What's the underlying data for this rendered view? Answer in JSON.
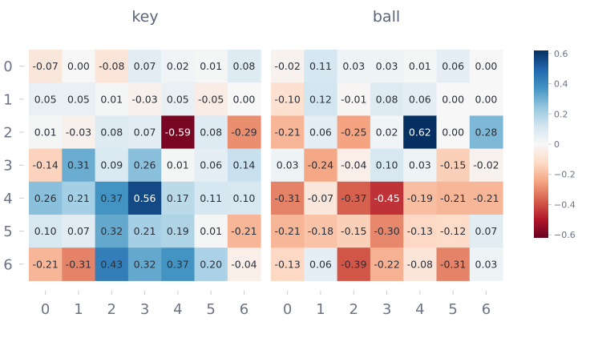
{
  "chart_data": [
    {
      "type": "heatmap",
      "title": "key",
      "x": [
        "0",
        "1",
        "2",
        "3",
        "4",
        "5",
        "6"
      ],
      "y": [
        "0",
        "1",
        "2",
        "3",
        "4",
        "5",
        "6"
      ],
      "values": [
        [
          -0.07,
          0.0,
          -0.08,
          0.07,
          0.02,
          0.01,
          0.08
        ],
        [
          0.05,
          0.05,
          0.01,
          -0.03,
          0.05,
          -0.05,
          0.0
        ],
        [
          0.01,
          -0.03,
          0.08,
          0.07,
          -0.59,
          0.08,
          -0.29
        ],
        [
          -0.14,
          0.31,
          0.09,
          0.26,
          0.01,
          0.06,
          0.14
        ],
        [
          0.26,
          0.21,
          0.37,
          0.56,
          0.17,
          0.11,
          0.1
        ],
        [
          0.1,
          0.07,
          0.32,
          0.21,
          0.19,
          0.01,
          -0.21
        ],
        [
          -0.21,
          -0.31,
          0.43,
          0.32,
          0.37,
          0.2,
          -0.04
        ]
      ]
    },
    {
      "type": "heatmap",
      "title": "ball",
      "x": [
        "0",
        "1",
        "2",
        "3",
        "4",
        "5",
        "6"
      ],
      "y": [
        "0",
        "1",
        "2",
        "3",
        "4",
        "5",
        "6"
      ],
      "values": [
        [
          -0.02,
          0.11,
          0.03,
          0.03,
          0.01,
          0.06,
          0.0
        ],
        [
          -0.1,
          0.12,
          -0.01,
          0.08,
          0.06,
          0.0,
          0.0
        ],
        [
          -0.21,
          0.06,
          -0.25,
          0.02,
          0.62,
          0.0,
          0.28
        ],
        [
          0.03,
          -0.24,
          -0.04,
          0.1,
          0.03,
          -0.15,
          -0.02
        ],
        [
          -0.31,
          -0.07,
          -0.37,
          -0.45,
          -0.19,
          -0.21,
          -0.21
        ],
        [
          -0.21,
          -0.18,
          -0.15,
          -0.3,
          -0.13,
          -0.12,
          0.07
        ],
        [
          -0.13,
          0.06,
          -0.39,
          -0.22,
          -0.08,
          -0.31,
          0.03
        ]
      ]
    }
  ],
  "colorbar": {
    "range": [
      -0.62,
      0.62
    ],
    "ticks": [
      0.6,
      0.4,
      0.2,
      0,
      -0.2,
      -0.4,
      -0.6
    ],
    "tick_labels": [
      "0.6",
      "0.4",
      "0.2",
      "0",
      "−0.2",
      "−0.4",
      "−0.6"
    ],
    "colorscale": "RdBu",
    "colors": [
      "#67001f",
      "#b2182b",
      "#d6604d",
      "#f4a582",
      "#fddbc7",
      "#f7f7f7",
      "#d1e5f0",
      "#92c5de",
      "#4393c3",
      "#2166ac",
      "#053061"
    ]
  }
}
